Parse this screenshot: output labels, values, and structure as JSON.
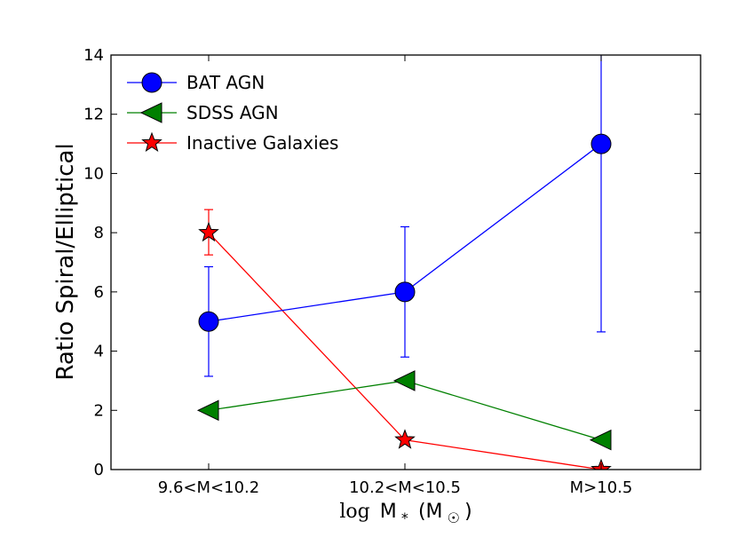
{
  "chart_data": {
    "type": "line",
    "title": "",
    "categories": [
      "9.6<M<10.2",
      "10.2<M<10.5",
      "M>10.5"
    ],
    "xlabel": {
      "math": "log",
      "main": "M",
      "sub": "*",
      "units_open": "(M",
      "units_sub": "☉",
      "units_close": ")"
    },
    "ylabel": "Ratio Spiral/Elliptical",
    "ylim": [
      0,
      14
    ],
    "yticks": [
      0,
      2,
      4,
      6,
      8,
      10,
      12,
      14
    ],
    "grid": false,
    "legend_position": "top-left",
    "series": [
      {
        "name": "BAT AGN",
        "color": "#0000ff",
        "marker": "circle",
        "values": [
          5,
          6,
          11
        ],
        "err_low": [
          3.15,
          3.8,
          4.65
        ],
        "err_high": [
          6.85,
          8.2,
          14.5
        ]
      },
      {
        "name": "SDSS AGN",
        "color": "#008000",
        "marker": "triangle-left",
        "values": [
          2,
          3,
          1
        ]
      },
      {
        "name": "Inactive Galaxies",
        "color": "#ff0000",
        "marker": "star",
        "values": [
          8,
          1,
          0
        ],
        "err_low": [
          7.25,
          null,
          null
        ],
        "err_high": [
          8.78,
          null,
          null
        ]
      }
    ]
  }
}
